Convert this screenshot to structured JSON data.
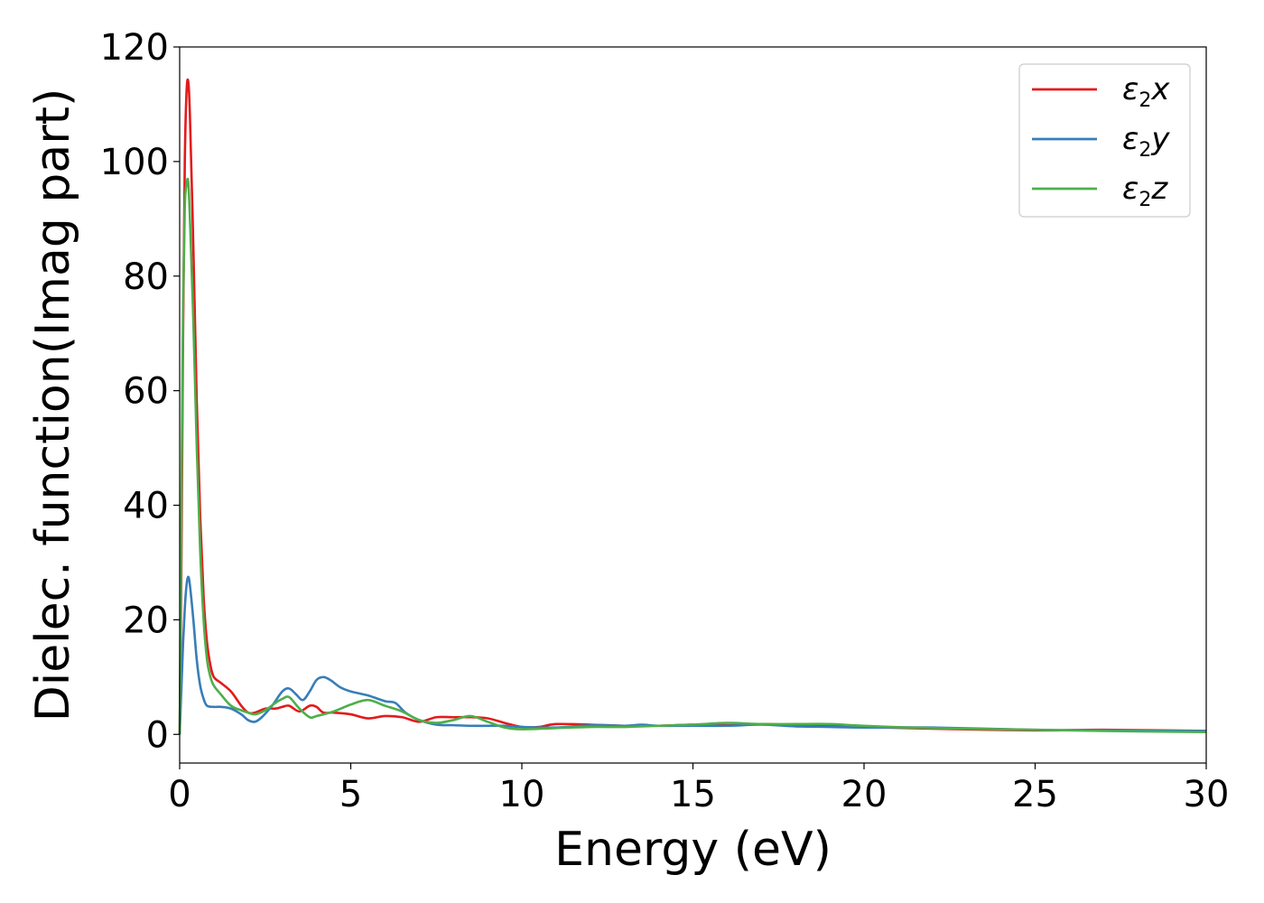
{
  "chart_data": {
    "type": "line",
    "xlabel": "Energy (eV)",
    "ylabel": "Dielec. function(Imag part)",
    "xlim": [
      0,
      30
    ],
    "ylim": [
      -5,
      120
    ],
    "xticks": [
      0,
      5,
      10,
      15,
      20,
      25,
      30
    ],
    "yticks": [
      0,
      20,
      40,
      60,
      80,
      100,
      120
    ],
    "grid": false,
    "legend_position": "top-right",
    "series": [
      {
        "name": "ε2x",
        "legend_base": "ε",
        "legend_sub": "2",
        "legend_var": "x",
        "color": "#e41a1c",
        "x": [
          0,
          0.05,
          0.1,
          0.15,
          0.2,
          0.25,
          0.3,
          0.4,
          0.5,
          0.6,
          0.7,
          0.8,
          0.9,
          1.0,
          1.2,
          1.5,
          1.8,
          2.0,
          2.2,
          2.5,
          2.8,
          3.0,
          3.2,
          3.5,
          3.8,
          4.0,
          4.2,
          4.5,
          5.0,
          5.5,
          6.0,
          6.5,
          7.0,
          7.5,
          8.0,
          8.5,
          9.0,
          9.5,
          10.0,
          10.5,
          11.0,
          12.0,
          13.0,
          14.0,
          15.0,
          16.0,
          17.0,
          18.0,
          19.0,
          20.0,
          22.0,
          25.0,
          27.0,
          30.0
        ],
        "y": [
          0,
          30,
          70,
          100,
          112,
          114,
          108,
          85,
          58,
          38,
          24,
          16,
          12,
          10,
          9,
          7.5,
          5,
          3.8,
          3.8,
          4.5,
          4.5,
          4.8,
          5,
          4,
          5,
          4.8,
          3.8,
          3.8,
          3.5,
          2.8,
          3.2,
          3,
          2.2,
          3,
          3,
          3,
          2.8,
          2,
          1.3,
          1.3,
          1.8,
          1.7,
          1.5,
          1.5,
          1.7,
          1.6,
          1.8,
          1.6,
          1.5,
          1.3,
          1.0,
          0.7,
          0.8,
          0.6
        ]
      },
      {
        "name": "ε2y",
        "legend_base": "ε",
        "legend_sub": "2",
        "legend_var": "y",
        "color": "#377eb8",
        "x": [
          0,
          0.05,
          0.1,
          0.15,
          0.2,
          0.25,
          0.3,
          0.4,
          0.5,
          0.6,
          0.7,
          0.8,
          1.0,
          1.2,
          1.5,
          1.8,
          2.0,
          2.2,
          2.4,
          2.7,
          3.0,
          3.2,
          3.4,
          3.6,
          3.8,
          4.0,
          4.2,
          4.4,
          4.7,
          5.0,
          5.5,
          6.0,
          6.3,
          6.6,
          7.0,
          7.5,
          8.0,
          8.5,
          9.0,
          9.5,
          10.0,
          11.0,
          12.0,
          13.0,
          13.5,
          14.0,
          15.0,
          16.0,
          17.0,
          18.0,
          19.0,
          20.0,
          22.0,
          25.0,
          27.0,
          30.0
        ],
        "y": [
          0,
          8,
          16,
          22,
          26,
          27.5,
          26,
          20,
          13,
          8.5,
          6.2,
          5,
          4.8,
          4.8,
          4.5,
          3.5,
          2.5,
          2.2,
          3,
          5,
          7.5,
          8,
          7,
          6,
          7.5,
          9.5,
          10,
          9.5,
          8.2,
          7.5,
          6.8,
          5.8,
          5.5,
          3.8,
          2.5,
          1.7,
          1.6,
          1.5,
          1.5,
          1.5,
          1.3,
          1.2,
          1.6,
          1.5,
          1.7,
          1.5,
          1.5,
          1.5,
          1.7,
          1.4,
          1.3,
          1.2,
          1.2,
          0.8,
          0.7,
          0.6
        ]
      },
      {
        "name": "ε2z",
        "legend_base": "ε",
        "legend_sub": "2",
        "legend_var": "z",
        "color": "#4daf4a",
        "x": [
          0,
          0.05,
          0.1,
          0.15,
          0.2,
          0.25,
          0.3,
          0.4,
          0.5,
          0.6,
          0.7,
          0.8,
          0.9,
          1.0,
          1.2,
          1.5,
          1.8,
          2.0,
          2.2,
          2.5,
          2.8,
          3.0,
          3.2,
          3.5,
          3.8,
          4.0,
          4.5,
          5.0,
          5.5,
          6.0,
          6.5,
          7.0,
          7.5,
          8.0,
          8.5,
          9.0,
          9.5,
          10.0,
          11.0,
          12.0,
          13.0,
          14.0,
          15.0,
          16.0,
          17.0,
          18.0,
          19.0,
          20.0,
          22.0,
          25.0,
          27.0,
          30.0
        ],
        "y": [
          0,
          40,
          75,
          92,
          96,
          96.5,
          90,
          72,
          50,
          32,
          20,
          13,
          10,
          8.5,
          7,
          5,
          4.2,
          3.8,
          3.5,
          4.2,
          5.5,
          6.2,
          6.5,
          4.5,
          3,
          3.2,
          4,
          5.2,
          6,
          5,
          4,
          2.5,
          2,
          2.5,
          3.2,
          2.2,
          1.2,
          0.9,
          1.1,
          1.3,
          1.3,
          1.5,
          1.7,
          2,
          1.8,
          1.8,
          1.8,
          1.5,
          1.1,
          0.8,
          0.6,
          0.4
        ]
      }
    ]
  }
}
